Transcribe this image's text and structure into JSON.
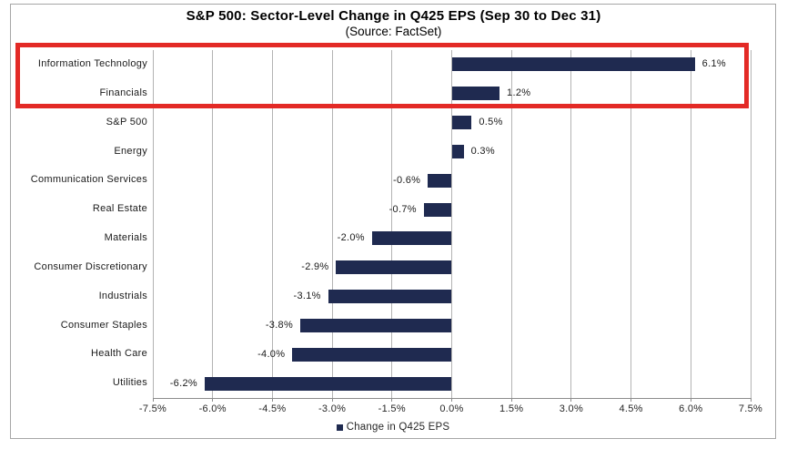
{
  "chart_data": {
    "type": "bar",
    "orientation": "horizontal",
    "title": "S&P 500: Sector-Level Change in Q425 EPS (Sep 30 to Dec 31)",
    "subtitle": "(Source: FactSet)",
    "legend": "Change in Q425 EPS",
    "legend_position": "bottom-center",
    "grid": true,
    "categories": [
      "Information Technology",
      "Financials",
      "S&P 500",
      "Energy",
      "Communication Services",
      "Real Estate",
      "Materials",
      "Consumer Discretionary",
      "Industrials",
      "Consumer Staples",
      "Health Care",
      "Utilities"
    ],
    "values": [
      6.1,
      1.2,
      0.5,
      0.3,
      -0.6,
      -0.7,
      -2.0,
      -2.9,
      -3.1,
      -3.8,
      -4.0,
      -6.2
    ],
    "value_labels": [
      "6.1%",
      "1.2%",
      "0.5%",
      "0.3%",
      "-0.6%",
      "-0.7%",
      "-2.0%",
      "-2.9%",
      "-3.1%",
      "-3.8%",
      "-4.0%",
      "-6.2%"
    ],
    "xlim": [
      -7.5,
      7.5
    ],
    "xticks": [
      -7.5,
      -6.0,
      -4.5,
      -3.0,
      -1.5,
      0.0,
      1.5,
      3.0,
      4.5,
      6.0,
      7.5
    ],
    "xtick_labels": [
      "-7.5%",
      "-6.0%",
      "-4.5%",
      "-3.0%",
      "-1.5%",
      "0.0%",
      "1.5%",
      "3.0%",
      "4.5%",
      "6.0%",
      "7.5%"
    ],
    "bar_color": "#1f2a50",
    "highlight": {
      "categories": [
        "Information Technology",
        "Financials"
      ],
      "box_color": "#e32a26"
    }
  }
}
